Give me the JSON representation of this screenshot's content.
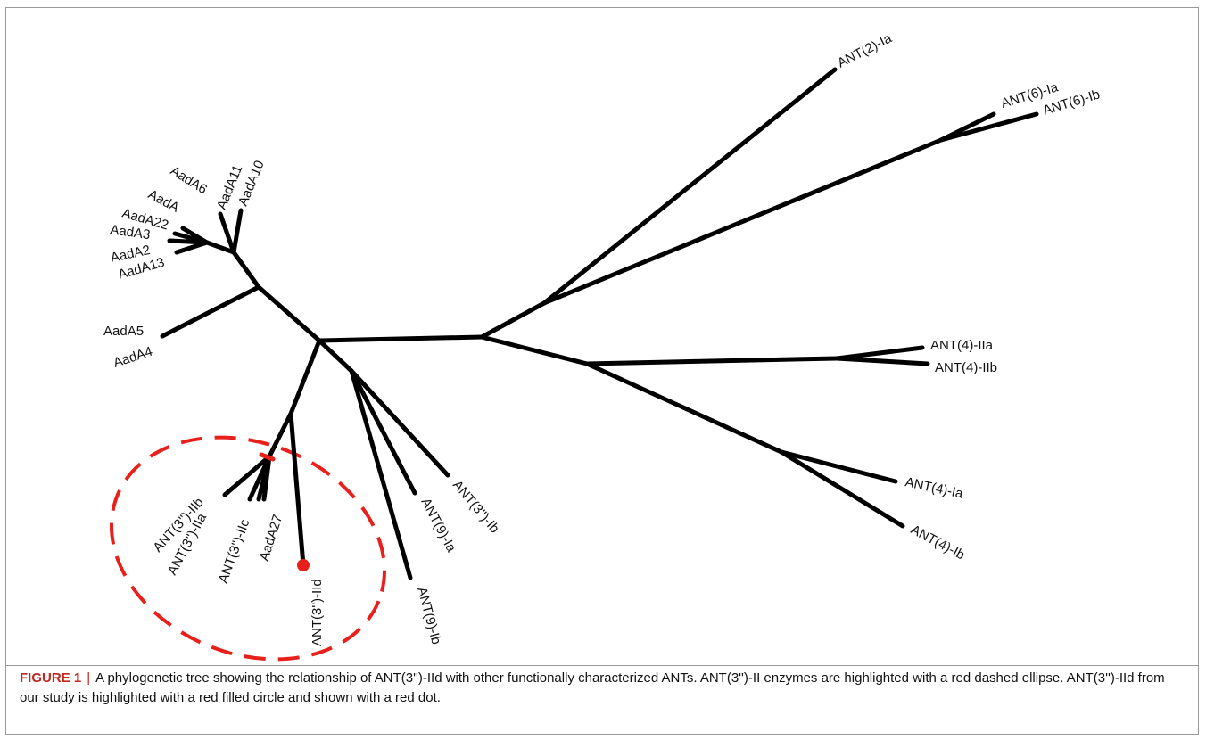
{
  "tree": {
    "leaves": {
      "ant2_ia": "ANT(2)-Ia",
      "ant6_ia": "ANT(6)-Ia",
      "ant6_ib": "ANT(6)-Ib",
      "aada11": "AadA11",
      "aada10": "AadA10",
      "aada6": "AadA6",
      "aada": "AadA",
      "aada22": "AadA22",
      "aada3": "AadA3",
      "aada2": "AadA2",
      "aada13": "AadA13",
      "aada5": "AadA5",
      "aada4": "AadA4",
      "ant4_iia": "ANT(4)-IIa",
      "ant4_iib": "ANT(4)-IIb",
      "ant4_ia": "ANT(4)-Ia",
      "ant4_ib": "ANT(4)-Ib",
      "ant3_ib": "ANT(3'')-Ib",
      "ant9_ia": "ANT(9)-Ia",
      "ant9_ib": "ANT(9)-Ib",
      "ant3_iid": "ANT(3'')-IId",
      "ant3_iib": "ANT(3'')-IIb",
      "ant3_iia": "ANT(3'')-IIa",
      "ant3_iic": "ANT(3'')-IIc",
      "aada27": "AadA27"
    },
    "highlight_color": "#e8201c",
    "branch_color": "#000000"
  },
  "caption": {
    "label": "FIGURE 1",
    "separator": "|",
    "text": "A phylogenetic tree showing the relationship of ANT(3'')-IId with other functionally characterized ANTs. ANT(3'')-II enzymes are highlighted with a red dashed ellipse. ANT(3'')-IId from our study is highlighted with a red filled circle and shown with a red dot."
  }
}
